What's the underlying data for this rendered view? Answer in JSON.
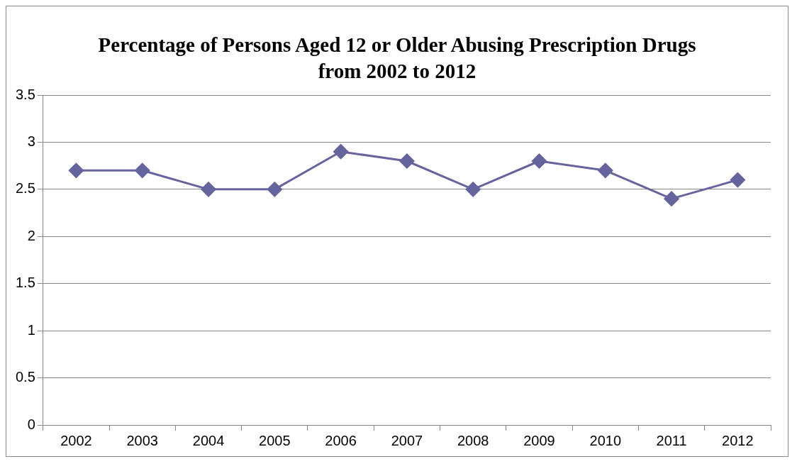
{
  "chart_data": {
    "type": "line",
    "title": "Percentage of Persons Aged 12 or Older Abusing Prescription Drugs from 2002 to 2012",
    "categories": [
      "2002",
      "2003",
      "2004",
      "2005",
      "2006",
      "2007",
      "2008",
      "2009",
      "2010",
      "2011",
      "2012"
    ],
    "series": [
      {
        "color": "#65649e",
        "values": [
          2.7,
          2.7,
          2.5,
          2.5,
          2.9,
          2.8,
          2.5,
          2.8,
          2.7,
          2.4,
          2.6
        ]
      }
    ],
    "ylim": [
      0,
      3.5
    ],
    "yticks": [
      0,
      0.5,
      1,
      1.5,
      2,
      2.5,
      3,
      3.5
    ],
    "grid": "y",
    "marker": "diamond",
    "legend": false
  }
}
